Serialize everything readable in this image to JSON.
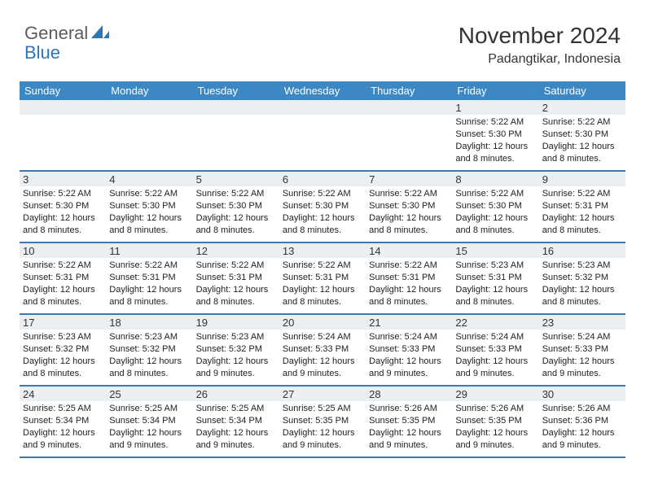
{
  "logo": {
    "general": "General",
    "blue": "Blue"
  },
  "title": "November 2024",
  "location": "Padangtikar, Indonesia",
  "colors": {
    "header_bg": "#3b88c4",
    "row_border": "#3b78b0",
    "daynum_bg": "#eceff1",
    "logo_gray": "#5c5c5c",
    "logo_blue": "#2c76b8"
  },
  "weekdays": [
    "Sunday",
    "Monday",
    "Tuesday",
    "Wednesday",
    "Thursday",
    "Friday",
    "Saturday"
  ],
  "weeks": [
    [
      {
        "day": "",
        "sunrise": "",
        "sunset": "",
        "daylight": ""
      },
      {
        "day": "",
        "sunrise": "",
        "sunset": "",
        "daylight": ""
      },
      {
        "day": "",
        "sunrise": "",
        "sunset": "",
        "daylight": ""
      },
      {
        "day": "",
        "sunrise": "",
        "sunset": "",
        "daylight": ""
      },
      {
        "day": "",
        "sunrise": "",
        "sunset": "",
        "daylight": ""
      },
      {
        "day": "1",
        "sunrise": "Sunrise: 5:22 AM",
        "sunset": "Sunset: 5:30 PM",
        "daylight": "Daylight: 12 hours and 8 minutes."
      },
      {
        "day": "2",
        "sunrise": "Sunrise: 5:22 AM",
        "sunset": "Sunset: 5:30 PM",
        "daylight": "Daylight: 12 hours and 8 minutes."
      }
    ],
    [
      {
        "day": "3",
        "sunrise": "Sunrise: 5:22 AM",
        "sunset": "Sunset: 5:30 PM",
        "daylight": "Daylight: 12 hours and 8 minutes."
      },
      {
        "day": "4",
        "sunrise": "Sunrise: 5:22 AM",
        "sunset": "Sunset: 5:30 PM",
        "daylight": "Daylight: 12 hours and 8 minutes."
      },
      {
        "day": "5",
        "sunrise": "Sunrise: 5:22 AM",
        "sunset": "Sunset: 5:30 PM",
        "daylight": "Daylight: 12 hours and 8 minutes."
      },
      {
        "day": "6",
        "sunrise": "Sunrise: 5:22 AM",
        "sunset": "Sunset: 5:30 PM",
        "daylight": "Daylight: 12 hours and 8 minutes."
      },
      {
        "day": "7",
        "sunrise": "Sunrise: 5:22 AM",
        "sunset": "Sunset: 5:30 PM",
        "daylight": "Daylight: 12 hours and 8 minutes."
      },
      {
        "day": "8",
        "sunrise": "Sunrise: 5:22 AM",
        "sunset": "Sunset: 5:30 PM",
        "daylight": "Daylight: 12 hours and 8 minutes."
      },
      {
        "day": "9",
        "sunrise": "Sunrise: 5:22 AM",
        "sunset": "Sunset: 5:31 PM",
        "daylight": "Daylight: 12 hours and 8 minutes."
      }
    ],
    [
      {
        "day": "10",
        "sunrise": "Sunrise: 5:22 AM",
        "sunset": "Sunset: 5:31 PM",
        "daylight": "Daylight: 12 hours and 8 minutes."
      },
      {
        "day": "11",
        "sunrise": "Sunrise: 5:22 AM",
        "sunset": "Sunset: 5:31 PM",
        "daylight": "Daylight: 12 hours and 8 minutes."
      },
      {
        "day": "12",
        "sunrise": "Sunrise: 5:22 AM",
        "sunset": "Sunset: 5:31 PM",
        "daylight": "Daylight: 12 hours and 8 minutes."
      },
      {
        "day": "13",
        "sunrise": "Sunrise: 5:22 AM",
        "sunset": "Sunset: 5:31 PM",
        "daylight": "Daylight: 12 hours and 8 minutes."
      },
      {
        "day": "14",
        "sunrise": "Sunrise: 5:22 AM",
        "sunset": "Sunset: 5:31 PM",
        "daylight": "Daylight: 12 hours and 8 minutes."
      },
      {
        "day": "15",
        "sunrise": "Sunrise: 5:23 AM",
        "sunset": "Sunset: 5:31 PM",
        "daylight": "Daylight: 12 hours and 8 minutes."
      },
      {
        "day": "16",
        "sunrise": "Sunrise: 5:23 AM",
        "sunset": "Sunset: 5:32 PM",
        "daylight": "Daylight: 12 hours and 8 minutes."
      }
    ],
    [
      {
        "day": "17",
        "sunrise": "Sunrise: 5:23 AM",
        "sunset": "Sunset: 5:32 PM",
        "daylight": "Daylight: 12 hours and 8 minutes."
      },
      {
        "day": "18",
        "sunrise": "Sunrise: 5:23 AM",
        "sunset": "Sunset: 5:32 PM",
        "daylight": "Daylight: 12 hours and 8 minutes."
      },
      {
        "day": "19",
        "sunrise": "Sunrise: 5:23 AM",
        "sunset": "Sunset: 5:32 PM",
        "daylight": "Daylight: 12 hours and 9 minutes."
      },
      {
        "day": "20",
        "sunrise": "Sunrise: 5:24 AM",
        "sunset": "Sunset: 5:33 PM",
        "daylight": "Daylight: 12 hours and 9 minutes."
      },
      {
        "day": "21",
        "sunrise": "Sunrise: 5:24 AM",
        "sunset": "Sunset: 5:33 PM",
        "daylight": "Daylight: 12 hours and 9 minutes."
      },
      {
        "day": "22",
        "sunrise": "Sunrise: 5:24 AM",
        "sunset": "Sunset: 5:33 PM",
        "daylight": "Daylight: 12 hours and 9 minutes."
      },
      {
        "day": "23",
        "sunrise": "Sunrise: 5:24 AM",
        "sunset": "Sunset: 5:33 PM",
        "daylight": "Daylight: 12 hours and 9 minutes."
      }
    ],
    [
      {
        "day": "24",
        "sunrise": "Sunrise: 5:25 AM",
        "sunset": "Sunset: 5:34 PM",
        "daylight": "Daylight: 12 hours and 9 minutes."
      },
      {
        "day": "25",
        "sunrise": "Sunrise: 5:25 AM",
        "sunset": "Sunset: 5:34 PM",
        "daylight": "Daylight: 12 hours and 9 minutes."
      },
      {
        "day": "26",
        "sunrise": "Sunrise: 5:25 AM",
        "sunset": "Sunset: 5:34 PM",
        "daylight": "Daylight: 12 hours and 9 minutes."
      },
      {
        "day": "27",
        "sunrise": "Sunrise: 5:25 AM",
        "sunset": "Sunset: 5:35 PM",
        "daylight": "Daylight: 12 hours and 9 minutes."
      },
      {
        "day": "28",
        "sunrise": "Sunrise: 5:26 AM",
        "sunset": "Sunset: 5:35 PM",
        "daylight": "Daylight: 12 hours and 9 minutes."
      },
      {
        "day": "29",
        "sunrise": "Sunrise: 5:26 AM",
        "sunset": "Sunset: 5:35 PM",
        "daylight": "Daylight: 12 hours and 9 minutes."
      },
      {
        "day": "30",
        "sunrise": "Sunrise: 5:26 AM",
        "sunset": "Sunset: 5:36 PM",
        "daylight": "Daylight: 12 hours and 9 minutes."
      }
    ]
  ]
}
